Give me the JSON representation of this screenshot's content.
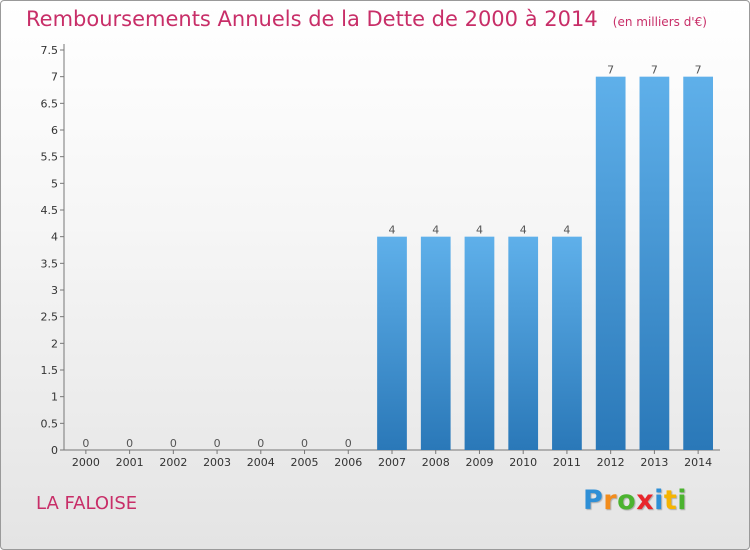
{
  "header": {
    "title": "Remboursements Annuels de la Dette de 2000 à 2014",
    "unit": "(en milliers d'€)"
  },
  "footer": {
    "commune": "LA FALOISE",
    "logo": {
      "letters": [
        "P",
        "r",
        "o",
        "x",
        "i",
        "t",
        "i"
      ],
      "colors": [
        "#2e8fd6",
        "#f28c1c",
        "#4bb32f",
        "#e8262c",
        "#2e8fd6",
        "#f5b400",
        "#4bb32f"
      ]
    }
  },
  "chart_data": {
    "type": "bar",
    "title": "Remboursements Annuels de la Dette de 2000 à 2014",
    "categories": [
      "2000",
      "2001",
      "2002",
      "2003",
      "2004",
      "2005",
      "2006",
      "2007",
      "2008",
      "2009",
      "2010",
      "2011",
      "2012",
      "2013",
      "2014"
    ],
    "values": [
      0,
      0,
      0,
      0,
      0,
      0,
      0,
      4,
      4,
      4,
      4,
      4,
      7,
      7,
      7
    ],
    "data_labels": [
      "0",
      "0",
      "0",
      "0",
      "0",
      "0",
      "0",
      "4",
      "4",
      "4",
      "4",
      "4",
      "7",
      "7",
      "7"
    ],
    "yticks": [
      "0",
      "0.5",
      "1",
      "1.5",
      "2",
      "2.5",
      "3",
      "3.5",
      "4",
      "4.5",
      "5",
      "5.5",
      "6",
      "6.5",
      "7",
      "7.5"
    ],
    "ylim": [
      0,
      7.5
    ],
    "grid": false,
    "bar_color_top": "#5fb0ea",
    "bar_color_bottom": "#2a78b8"
  }
}
